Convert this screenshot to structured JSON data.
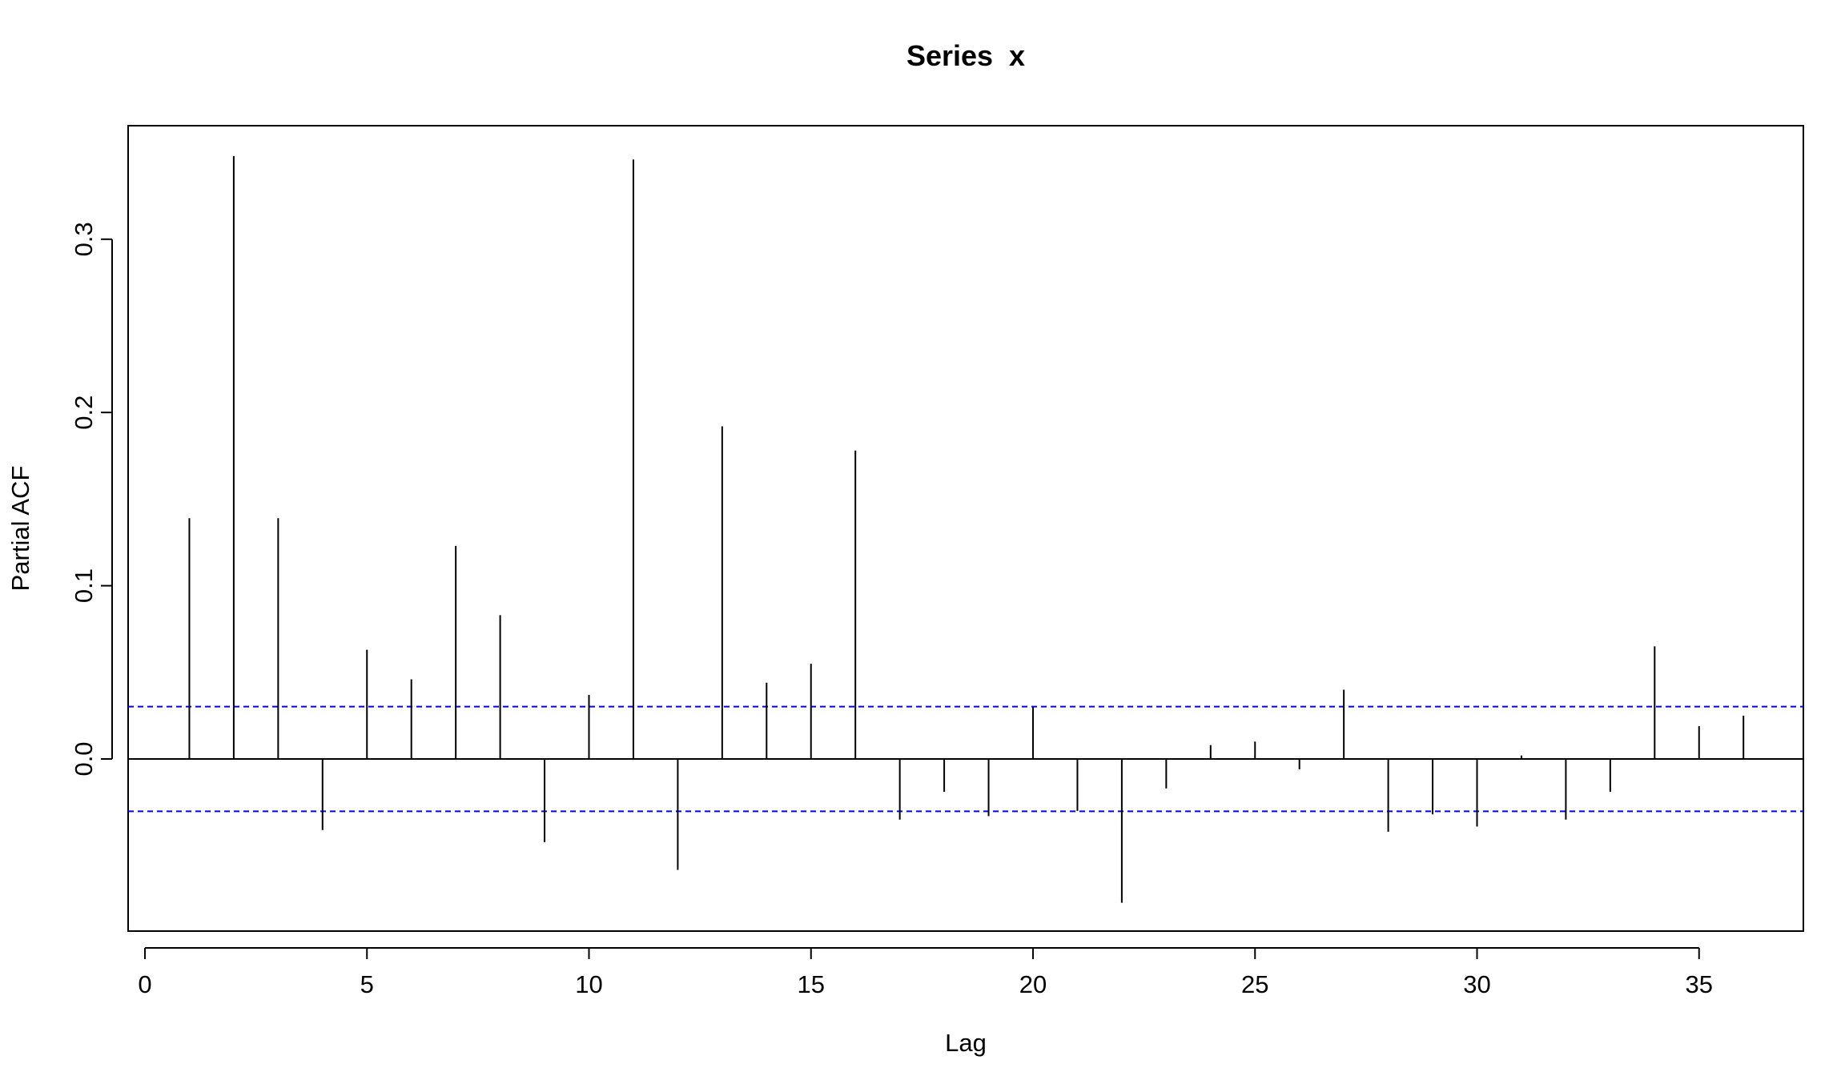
{
  "chart_data": {
    "type": "bar",
    "title": "Series  x",
    "xlabel": "Lag",
    "ylabel": "Partial ACF",
    "xlim": [
      0,
      37
    ],
    "ylim": [
      -0.1,
      0.35
    ],
    "x_ticks": [
      0,
      5,
      10,
      15,
      20,
      25,
      30,
      35
    ],
    "y_ticks": [
      0.0,
      0.1,
      0.2,
      0.3
    ],
    "y_tick_labels": [
      "0.0",
      "0.1",
      "0.2",
      "0.3"
    ],
    "grid": false,
    "series": [
      {
        "lags": [
          1,
          2,
          3,
          4,
          5,
          6,
          7,
          8,
          9,
          10,
          11,
          12,
          13,
          14,
          15,
          16,
          17,
          18,
          19,
          20,
          21,
          22,
          23,
          24,
          25,
          26,
          27,
          28,
          29,
          30,
          31,
          32,
          33,
          34,
          35,
          36
        ],
        "values": [
          0.139,
          0.348,
          0.139,
          -0.041,
          0.063,
          0.046,
          0.123,
          0.083,
          -0.048,
          0.037,
          0.346,
          -0.064,
          0.192,
          0.044,
          0.055,
          0.178,
          -0.035,
          -0.019,
          -0.033,
          0.03,
          -0.03,
          -0.083,
          -0.017,
          0.008,
          0.01,
          -0.006,
          0.04,
          -0.042,
          -0.032,
          -0.039,
          0.002,
          -0.035,
          -0.019,
          0.065,
          0.019,
          0.025
        ],
        "color": "#000000"
      }
    ],
    "confidence_bounds": {
      "upper": 0.0302,
      "lower": -0.0302,
      "color": "#0000FF",
      "style": "dashed"
    },
    "zero_line": true
  }
}
